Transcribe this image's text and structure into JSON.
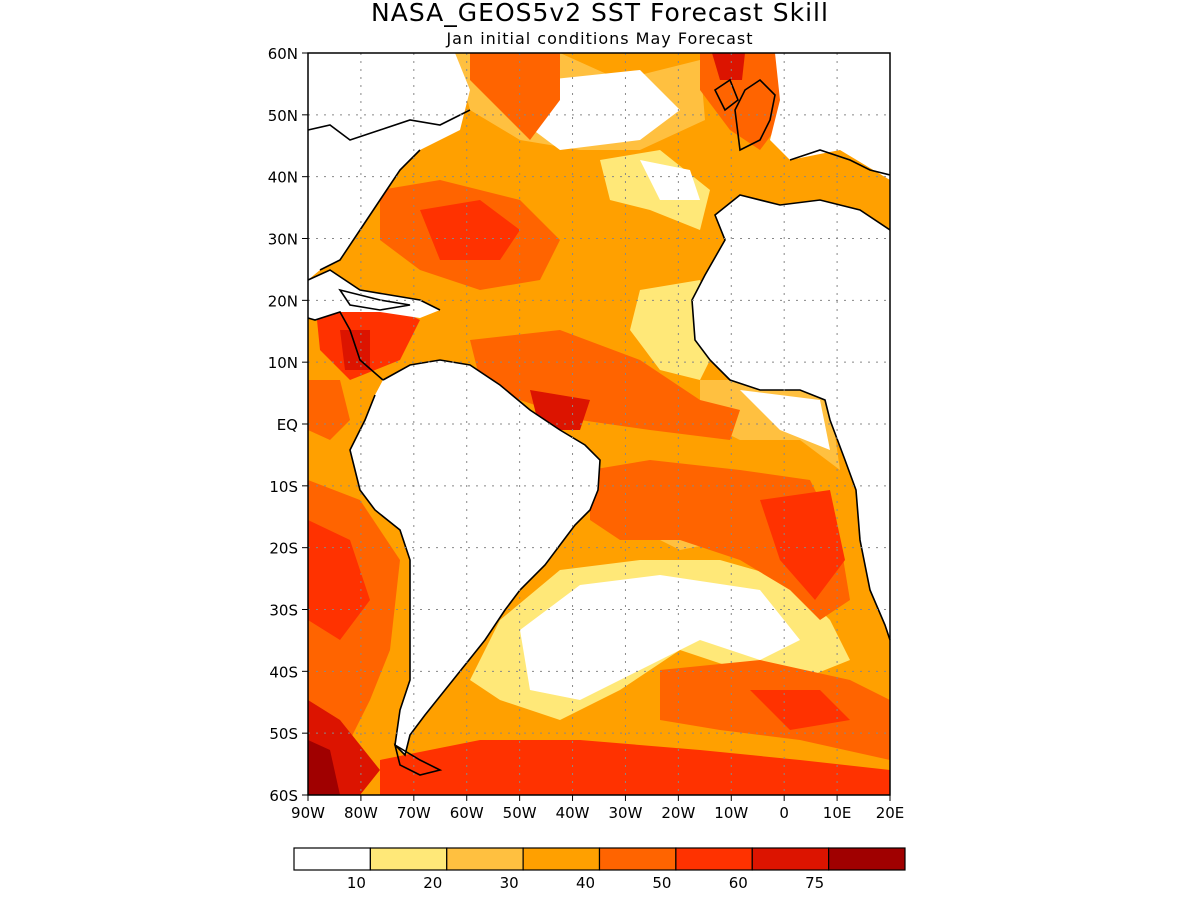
{
  "title": "NASA_GEOS5v2 SST Forecast Skill",
  "subtitle": "Jan initial conditions   May Forecast",
  "lat_labels": [
    "60N",
    "50N",
    "40N",
    "30N",
    "20N",
    "10N",
    "EQ",
    "10S",
    "20S",
    "30S",
    "40S",
    "50S",
    "60S"
  ],
  "lon_labels": [
    "90W",
    "80W",
    "70W",
    "60W",
    "50W",
    "40W",
    "30W",
    "20W",
    "10W",
    "0",
    "10E",
    "20E"
  ],
  "colorbar": {
    "labels": [
      "10",
      "20",
      "30",
      "40",
      "50",
      "60",
      "75"
    ],
    "colors": [
      "#ffffff",
      "#ffe878",
      "#ffc040",
      "#ffa000",
      "#ff6400",
      "#ff3200",
      "#dc1400",
      "#a00000"
    ]
  }
}
